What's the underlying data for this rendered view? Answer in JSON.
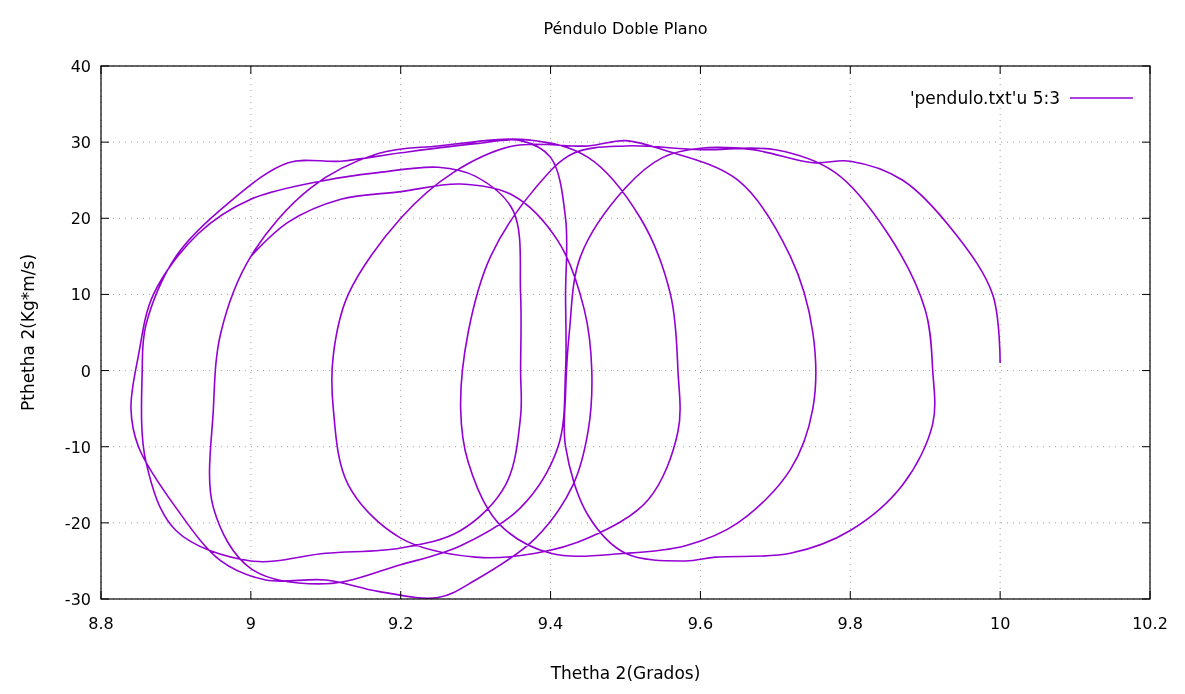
{
  "chart_data": {
    "type": "line",
    "title": "Péndulo Doble Plano",
    "xlabel": "Thetha 2(Grados)",
    "ylabel": "Pthetha 2(Kg*m/s)",
    "xlim": [
      8.8,
      10.2
    ],
    "xticks": [
      8.8,
      9,
      9.2,
      9.4,
      9.6,
      9.8,
      10,
      10.2
    ],
    "ylim": [
      -30,
      40
    ],
    "yticks": [
      -30,
      -20,
      -10,
      0,
      10,
      20,
      30,
      40
    ],
    "grid": true,
    "legend": "top right",
    "series": [
      {
        "name": "'pendulo.txt'u 5:3",
        "color": "#9400d3",
        "x": [
          9.0,
          9.05,
          9.12,
          9.2,
          9.28,
          9.35,
          9.41,
          9.445,
          9.455,
          9.45,
          9.43,
          9.38,
          9.3,
          9.25,
          9.17,
          9.1,
          9.02,
          8.96,
          8.9,
          8.85,
          8.84,
          8.85,
          8.87,
          8.93,
          9.0,
          9.1,
          9.17,
          9.25,
          9.3,
          9.35,
          9.36,
          9.36,
          9.36,
          9.34,
          9.28,
          9.2,
          9.1,
          9.0,
          8.9,
          8.86,
          8.855,
          8.86,
          8.9,
          8.97,
          9.05,
          9.12,
          9.2,
          9.3,
          9.36,
          9.4,
          9.42,
          9.42,
          9.42,
          9.41,
          9.36,
          9.28,
          9.2,
          9.1,
          9.0,
          8.95,
          8.95,
          8.96,
          9.0,
          9.08,
          9.17,
          9.25,
          9.37,
          9.45,
          9.52,
          9.56,
          9.57,
          9.57,
          9.53,
          9.45,
          9.38,
          9.3,
          9.2,
          9.13,
          9.11,
          9.11,
          9.13,
          9.2,
          9.27,
          9.35,
          9.45,
          9.5,
          9.55,
          9.65,
          9.72,
          9.75,
          9.75,
          9.72,
          9.65,
          9.58,
          9.5,
          9.4,
          9.33,
          9.29,
          9.28,
          9.29,
          9.32,
          9.38,
          9.43,
          9.5,
          9.6,
          9.7,
          9.78,
          9.85,
          9.9,
          9.91,
          9.91,
          9.87,
          9.8,
          9.72,
          9.62,
          9.58,
          9.5,
          9.45,
          9.42,
          9.42,
          9.425,
          9.44,
          9.5,
          9.55,
          9.6,
          9.67,
          9.75,
          9.8,
          9.87,
          9.94,
          9.99,
          10.0
        ],
        "values": [
          15,
          19.5,
          22.5,
          23.5,
          24.5,
          23,
          17,
          8,
          0,
          -8,
          -15,
          -22,
          -27.5,
          -29.8,
          -29,
          -27.5,
          -27.5,
          -25,
          -18,
          -10,
          -5,
          2,
          10,
          18,
          22.5,
          25,
          26,
          26.7,
          25.5,
          21,
          10,
          0,
          -6,
          -15,
          -21,
          -23.3,
          -24,
          -25,
          -21,
          -12,
          0,
          6,
          15,
          22,
          27.3,
          27.5,
          28.6,
          29.8,
          30.2,
          28,
          20,
          10,
          0,
          -10,
          -18,
          -23,
          -25.5,
          -28,
          -26,
          -18,
          -5,
          5,
          15,
          24,
          28.5,
          29.5,
          30.3,
          28,
          20,
          10,
          0,
          -8,
          -17,
          -22,
          -24,
          -24.5,
          -22,
          -15,
          -5,
          2,
          10,
          20,
          26,
          29.5,
          29.5,
          30.2,
          29,
          25,
          15,
          5,
          -5,
          -13,
          -20,
          -23,
          -24,
          -24,
          -20,
          -12,
          -5,
          5,
          15,
          24,
          28.5,
          29.5,
          29,
          29,
          26,
          18,
          8,
          0,
          -7,
          -15,
          -21,
          -24,
          -24.5,
          -25,
          -24,
          -19,
          -10,
          -3,
          5,
          15,
          24,
          28,
          29.2,
          29,
          27.3,
          27.5,
          25,
          18,
          10,
          1
        ]
      }
    ]
  }
}
